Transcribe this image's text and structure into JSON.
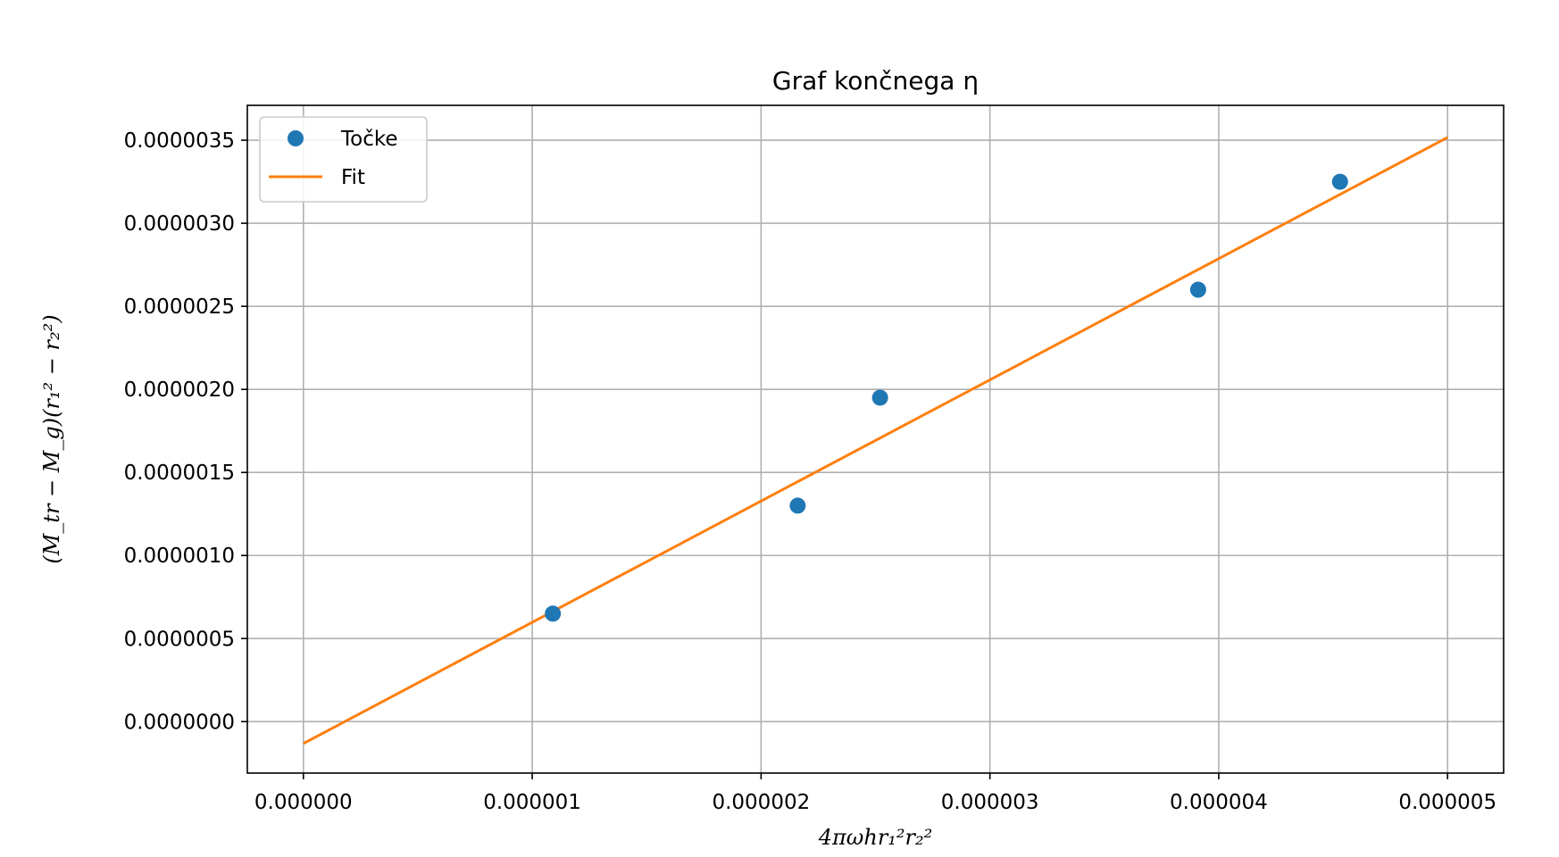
{
  "chart_data": {
    "type": "scatter",
    "title": "Graf končnega η",
    "xlabel": "4πωhr₁²r₂²",
    "ylabel": "(M_tr − M_g)(r₁² − r₂²)",
    "xlim": [
      -2.45e-07,
      5.245e-06
    ],
    "ylim": [
      -3.1e-07,
      3.71e-06
    ],
    "x_ticks": [
      0,
      1e-06,
      2e-06,
      3e-06,
      4e-06,
      5e-06
    ],
    "x_tick_labels": [
      "0.000000",
      "0.000001",
      "0.000002",
      "0.000003",
      "0.000004",
      "0.000005"
    ],
    "y_ticks": [
      0,
      5e-07,
      1e-06,
      1.5e-06,
      2e-06,
      2.5e-06,
      3e-06,
      3.5e-06
    ],
    "y_tick_labels": [
      "0.0000000",
      "0.0000005",
      "0.0000010",
      "0.0000015",
      "0.0000020",
      "0.0000025",
      "0.0000030",
      "0.0000035"
    ],
    "grid": true,
    "legend_position": "top-left",
    "series": [
      {
        "name": "Točke",
        "kind": "scatter",
        "color": "#1f77b4",
        "x": [
          1.09e-06,
          2.16e-06,
          2.52e-06,
          3.91e-06,
          4.53e-06
        ],
        "y": [
          6.5e-07,
          1.3e-06,
          1.95e-06,
          2.6e-06,
          3.25e-06
        ]
      },
      {
        "name": "Fit",
        "kind": "line",
        "color": "#ff7f0e",
        "x": [
          0,
          5e-06
        ],
        "y": [
          -1.32e-07,
          3.517e-06
        ]
      }
    ]
  }
}
